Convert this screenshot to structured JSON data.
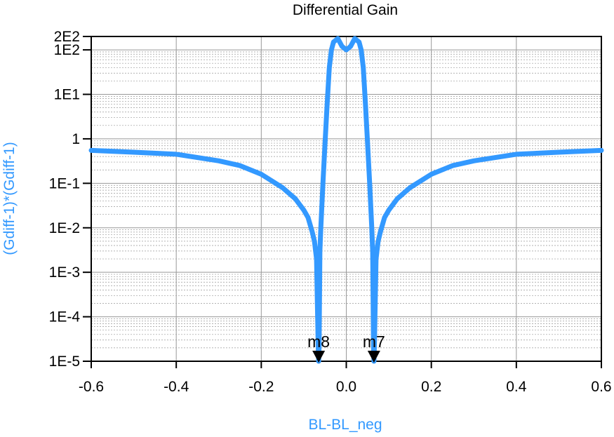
{
  "chart_data": {
    "type": "line",
    "title": "Differential Gain",
    "xlabel": "BL-BL_neg",
    "ylabel": "(Gdiff-1)*(Gdiff-1)",
    "xlim": [
      -0.6,
      0.6
    ],
    "ylim": [
      1e-05,
      200
    ],
    "y_scale": "log",
    "grid": true,
    "x_ticks": [
      "-0.6",
      "-0.4",
      "-0.2",
      "0.0",
      "0.2",
      "0.4",
      "0.6"
    ],
    "y_ticks": [
      "1E-5",
      "1E-4",
      "1E-3",
      "1E-2",
      "1E-1",
      "1",
      "1E1",
      "1E2",
      "2E2"
    ],
    "series": [
      {
        "color": "#3399ff",
        "x": [
          -0.6,
          -0.5,
          -0.4,
          -0.3,
          -0.25,
          -0.2,
          -0.15,
          -0.12,
          -0.1,
          -0.09,
          -0.08,
          -0.075,
          -0.07,
          -0.066,
          -0.065,
          -0.064,
          -0.062,
          -0.06,
          -0.055,
          -0.05,
          -0.045,
          -0.04,
          -0.035,
          -0.03,
          -0.02,
          -0.01,
          0.0,
          0.01,
          0.02,
          0.03,
          0.035,
          0.04,
          0.045,
          0.05,
          0.055,
          0.06,
          0.062,
          0.064,
          0.065,
          0.066,
          0.07,
          0.075,
          0.08,
          0.09,
          0.1,
          0.12,
          0.15,
          0.2,
          0.25,
          0.3,
          0.4,
          0.5,
          0.6
        ],
        "y": [
          0.55,
          0.5,
          0.45,
          0.32,
          0.25,
          0.16,
          0.08,
          0.045,
          0.025,
          0.017,
          0.008,
          0.005,
          0.002,
          2e-05,
          1e-05,
          2e-05,
          0.003,
          0.01,
          0.1,
          0.8,
          6,
          40,
          100,
          150,
          180,
          120,
          100,
          120,
          180,
          150,
          100,
          40,
          6,
          0.8,
          0.1,
          0.01,
          0.003,
          2e-05,
          1e-05,
          2e-05,
          0.002,
          0.005,
          0.008,
          0.017,
          0.025,
          0.045,
          0.08,
          0.16,
          0.25,
          0.32,
          0.45,
          0.5,
          0.55
        ]
      }
    ],
    "markers": [
      {
        "name": "m8",
        "x": -0.065,
        "y": 1e-05
      },
      {
        "name": "m7",
        "x": 0.065,
        "y": 1e-05
      }
    ],
    "colors": {
      "curve": "#3399ff",
      "axis_label": "#3399ff",
      "grid": "#999999"
    }
  }
}
